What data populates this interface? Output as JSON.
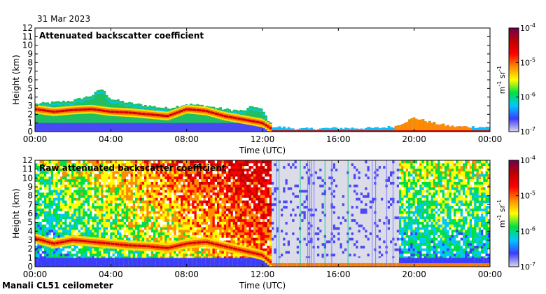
{
  "date": "31 Mar 2023",
  "station": "Manali CL51 ceilometer",
  "colors": {
    "colormap": [
      "#d8d8e8",
      "#3c3cff",
      "#00c8ff",
      "#00e040",
      "#ffff00",
      "#ff8c00",
      "#ff0000",
      "#c00000",
      "#6e0050"
    ]
  },
  "chart_data": [
    {
      "type": "heatmap",
      "title": "Attenuated backscatter coefficient",
      "xlabel": "Time (UTC)",
      "ylabel": "Height (km)",
      "x_ticks": [
        "00:00",
        "04:00",
        "08:00",
        "12:00",
        "16:00",
        "20:00",
        "00:00"
      ],
      "y_ticks": [
        "0",
        "1",
        "2",
        "3",
        "4",
        "5",
        "6",
        "7",
        "8",
        "9",
        "10",
        "11",
        "12"
      ],
      "xlim_hours": [
        0,
        24
      ],
      "ylim_km": [
        0,
        12
      ],
      "colorbar": {
        "scale": "log",
        "ticks": [
          "10-7",
          "10-6",
          "10-5",
          "10-4"
        ],
        "tick_labels": [
          {
            "base": "10",
            "exp": "-7"
          },
          {
            "base": "10",
            "exp": "-6"
          },
          {
            "base": "10",
            "exp": "-5"
          },
          {
            "base": "10",
            "exp": "-4"
          }
        ],
        "range": [
          1e-07,
          0.0001
        ],
        "unit_label": {
          "m": "m",
          "m_exp": "-1",
          "sr": "sr",
          "sr_exp": "-1"
        }
      },
      "layer_top_km": [
        [
          0,
          3.2
        ],
        [
          1,
          3.4
        ],
        [
          2,
          3.6
        ],
        [
          3,
          4.2
        ],
        [
          3.5,
          5.0
        ],
        [
          4,
          3.8
        ],
        [
          5,
          3.3
        ],
        [
          6,
          3.0
        ],
        [
          7,
          2.7
        ],
        [
          8,
          3.2
        ],
        [
          9,
          3.0
        ],
        [
          10,
          2.6
        ],
        [
          11,
          2.4
        ],
        [
          11.5,
          3.0
        ],
        [
          12,
          2.5
        ],
        [
          12.5,
          0.6
        ],
        [
          14,
          0.3
        ],
        [
          16,
          0.4
        ],
        [
          18,
          0.4
        ],
        [
          19,
          0.6
        ],
        [
          20,
          1.6
        ],
        [
          21,
          1.0
        ],
        [
          22,
          0.6
        ],
        [
          24,
          0.5
        ]
      ],
      "main_layer_km": [
        [
          0,
          2.6
        ],
        [
          1,
          2.3
        ],
        [
          2,
          2.5
        ],
        [
          3,
          2.6
        ],
        [
          4,
          2.3
        ],
        [
          5,
          2.2
        ],
        [
          6,
          2.0
        ],
        [
          7,
          1.8
        ],
        [
          8,
          2.6
        ],
        [
          9,
          2.4
        ],
        [
          10,
          1.8
        ],
        [
          11,
          1.4
        ],
        [
          12,
          1.0
        ],
        [
          12.5,
          0.3
        ]
      ]
    },
    {
      "type": "heatmap",
      "title": "Raw attenuated backscatter coefficient",
      "xlabel": "Time (UTC)",
      "ylabel": "Height (km)",
      "x_ticks": [
        "00:00",
        "04:00",
        "08:00",
        "12:00",
        "16:00",
        "20:00",
        "00:00"
      ],
      "y_ticks": [
        "0",
        "1",
        "2",
        "3",
        "4",
        "5",
        "6",
        "7",
        "8",
        "9",
        "10",
        "11",
        "12"
      ],
      "xlim_hours": [
        0,
        24
      ],
      "ylim_km": [
        0,
        12
      ],
      "colorbar": {
        "scale": "log",
        "ticks": [
          "10-7",
          "10-6",
          "10-5",
          "10-4"
        ],
        "tick_labels": [
          {
            "base": "10",
            "exp": "-7"
          },
          {
            "base": "10",
            "exp": "-6"
          },
          {
            "base": "10",
            "exp": "-5"
          },
          {
            "base": "10",
            "exp": "-4"
          }
        ],
        "range": [
          1e-07,
          0.0001
        ],
        "unit_label": {
          "m": "m",
          "m_exp": "-1",
          "sr": "sr",
          "sr_exp": "-1"
        }
      },
      "main_layer_km": [
        [
          0,
          3.2
        ],
        [
          1,
          2.6
        ],
        [
          2,
          3.0
        ],
        [
          3,
          2.8
        ],
        [
          4,
          2.6
        ],
        [
          5,
          2.4
        ],
        [
          6,
          2.3
        ],
        [
          7,
          2.1
        ],
        [
          8,
          2.6
        ],
        [
          9,
          2.8
        ],
        [
          10,
          2.3
        ],
        [
          11,
          1.8
        ],
        [
          12,
          1.3
        ],
        [
          12.5,
          0.4
        ]
      ],
      "noisy_background_hours": [
        12.5,
        19.2
      ]
    }
  ]
}
